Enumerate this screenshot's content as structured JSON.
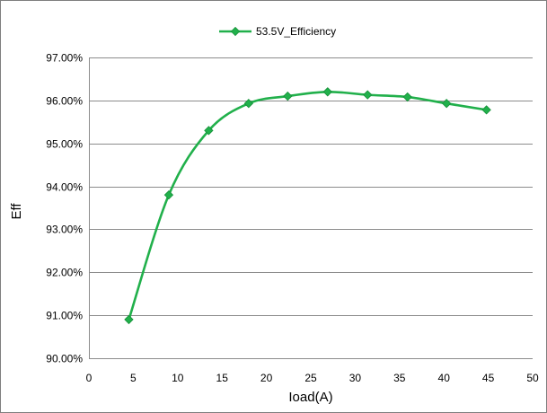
{
  "chart_data": {
    "type": "line",
    "title": "",
    "xlabel": "Ioad(A)",
    "ylabel": "Eff",
    "xlim": [
      0,
      50
    ],
    "ylim": [
      0.9,
      0.97
    ],
    "x_ticks": [
      0,
      5,
      10,
      15,
      20,
      25,
      30,
      35,
      40,
      45,
      50
    ],
    "y_ticks": [
      0.9,
      0.91,
      0.92,
      0.93,
      0.94,
      0.95,
      0.96,
      0.97
    ],
    "y_tick_labels": [
      "90.00%",
      "91.00%",
      "92.00%",
      "93.00%",
      "94.00%",
      "95.00%",
      "96.00%",
      "97.00%"
    ],
    "x_tick_labels": [
      "0",
      "5",
      "10",
      "15",
      "20",
      "25",
      "30",
      "35",
      "40",
      "45",
      "50"
    ],
    "grid": "horizontal",
    "legend_position": "top",
    "series": [
      {
        "name": "53.5V_Efficiency",
        "color": "#21b04b",
        "marker": "diamond",
        "x": [
          4.5,
          9,
          13.5,
          18,
          22.4,
          26.9,
          31.4,
          35.9,
          40.3,
          44.8
        ],
        "y": [
          0.909,
          0.938,
          0.953,
          0.9593,
          0.961,
          0.962,
          0.9613,
          0.9608,
          0.9593,
          0.9578
        ]
      }
    ]
  }
}
